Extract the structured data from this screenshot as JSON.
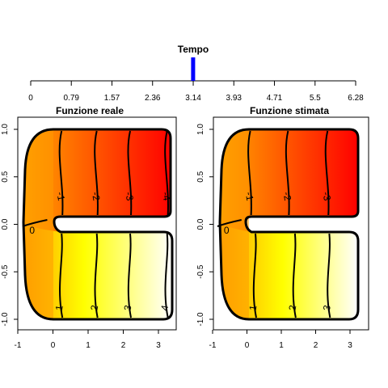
{
  "chart_data": [
    {
      "type": "slider",
      "title": "Tempo",
      "ticks": [
        "0",
        "0.79",
        "1.57",
        "2.36",
        "3.14",
        "3.93",
        "4.71",
        "5.5",
        "6.28"
      ],
      "tick_values": [
        0,
        0.785,
        1.571,
        2.356,
        3.142,
        3.927,
        4.712,
        5.498,
        6.283
      ],
      "range": [
        0,
        6.283
      ],
      "value": 3.14,
      "marker_color": "#0000ff"
    },
    {
      "type": "contour",
      "title": "Funzione reale",
      "xlim": [
        -1,
        3.5
      ],
      "ylim": [
        -1,
        1
      ],
      "xticks": [
        "-1",
        "0",
        "1",
        "2",
        "3"
      ],
      "yticks": [
        "-1.0",
        "-0.5",
        "0.0",
        "0.5",
        "1.0"
      ],
      "fill_colors": [
        "#ff0000",
        "#ff8c00",
        "#ffff00",
        "#ffffff"
      ],
      "contours": [
        {
          "label": "0",
          "x": 0
        },
        {
          "label": "-1",
          "x": 0.2
        },
        {
          "label": "-2",
          "x": 1.2
        },
        {
          "label": "-3",
          "x": 2.15
        },
        {
          "label": "-4",
          "x": 3.2
        },
        {
          "label": "1",
          "x": 0.2
        },
        {
          "label": "2",
          "x": 1.2
        },
        {
          "label": "3",
          "x": 2.15
        },
        {
          "label": "4",
          "x": 3.2
        }
      ]
    },
    {
      "type": "contour",
      "title": "Funzione stimata",
      "xlim": [
        -1,
        3.5
      ],
      "ylim": [
        -1,
        1
      ],
      "xticks": [
        "-1",
        "0",
        "1",
        "2",
        "3"
      ],
      "yticks": [
        "-1.0",
        "-0.5",
        "0.0",
        "0.5",
        "1.0"
      ],
      "fill_colors": [
        "#ff0000",
        "#ff8c00",
        "#ffff00",
        "#ffffff"
      ],
      "contours": [
        {
          "label": "0",
          "x": -0.05
        },
        {
          "label": "-1",
          "x": 0.05
        },
        {
          "label": "-2",
          "x": 1.15
        },
        {
          "label": "-3",
          "x": 2.3
        },
        {
          "label": "1",
          "x": 0.2
        },
        {
          "label": "2",
          "x": 1.35
        },
        {
          "label": "3",
          "x": 2.35
        }
      ]
    }
  ]
}
